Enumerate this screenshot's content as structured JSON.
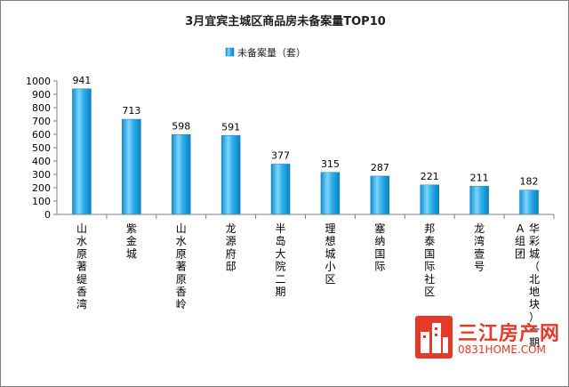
{
  "chart_data": {
    "type": "bar",
    "title": "3月宜宾主城区商品房未备案量TOP10",
    "legend": [
      "未备案量（套）"
    ],
    "legend_position": "top",
    "categories": [
      "山水原著缇香湾",
      "紫金城",
      "山水原著原香岭",
      "龙源府邸",
      "半岛大院二期",
      "理想城小区",
      "塞纳国际",
      "邦泰国际社区",
      "龙湾壹号",
      "华彩城（北地块）一期A组团"
    ],
    "series": [
      {
        "name": "未备案量（套）",
        "values": [
          941,
          713,
          598,
          591,
          377,
          315,
          287,
          221,
          211,
          182
        ]
      }
    ],
    "ylim": [
      0,
      1000
    ],
    "yticks": [
      0,
      100,
      200,
      300,
      400,
      500,
      600,
      700,
      800,
      900,
      1000
    ],
    "xlabel": "",
    "ylabel": "",
    "grid": false,
    "colors": {
      "bar": "#21a9e8",
      "bar_light": "#8fd8fa",
      "bar_dark": "#0d7fc0"
    }
  },
  "watermark": {
    "name": "三江房产网",
    "url": "0831HOME.COM"
  }
}
